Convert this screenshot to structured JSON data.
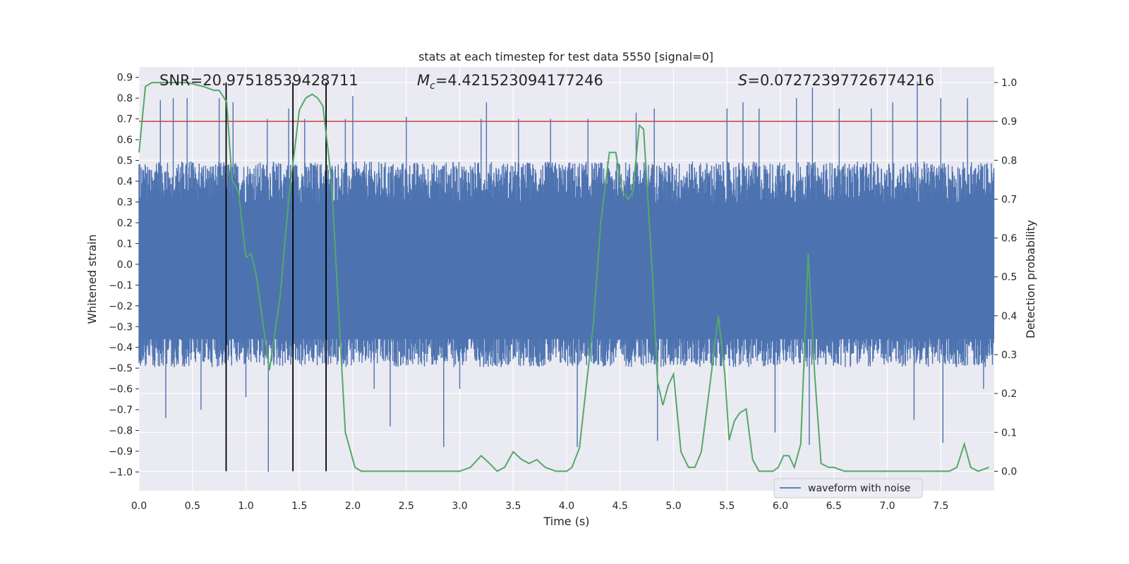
{
  "chart_data": {
    "type": "line",
    "title": "stats at each timestep for test data 5550 [signal=0]",
    "xlabel": "Time (s)",
    "ylabel_left": "Whitened strain",
    "ylabel_right": "Detection probability",
    "xlim": [
      0.0,
      8.0
    ],
    "ylim_left": [
      -1.09,
      0.95
    ],
    "ylim_right": [
      -0.05,
      1.04
    ],
    "x_ticks": [
      0.0,
      0.5,
      1.0,
      1.5,
      2.0,
      2.5,
      3.0,
      3.5,
      4.0,
      4.5,
      5.0,
      5.5,
      6.0,
      6.5,
      7.0,
      7.5
    ],
    "x_tick_labels": [
      "0.0",
      "0.5",
      "1.0",
      "1.5",
      "2.0",
      "2.5",
      "3.0",
      "3.5",
      "4.0",
      "4.5",
      "5.0",
      "5.5",
      "6.0",
      "6.5",
      "7.0",
      "7.5"
    ],
    "y_left_ticks": [
      0.9,
      0.8,
      0.7,
      0.6,
      0.5,
      0.4,
      0.3,
      0.2,
      0.1,
      0.0,
      -0.1,
      -0.2,
      -0.3,
      -0.4,
      -0.5,
      -0.6,
      -0.7,
      -0.8,
      -0.9,
      -1.0
    ],
    "y_left_tick_labels": [
      "0.9",
      "0.8",
      "0.7",
      "0.6",
      "0.5",
      "0.4",
      "0.3",
      "0.2",
      "0.1",
      "0.0",
      "−0.1",
      "−0.2",
      "−0.3",
      "−0.4",
      "−0.5",
      "−0.6",
      "−0.7",
      "−0.8",
      "−0.9",
      "−1.0"
    ],
    "y_right_ticks": [
      1.0,
      0.9,
      0.8,
      0.7,
      0.6,
      0.5,
      0.4,
      0.3,
      0.2,
      0.1,
      0.0
    ],
    "y_right_tick_labels": [
      "1.0",
      "0.9",
      "0.8",
      "0.7",
      "0.6",
      "0.5",
      "0.4",
      "0.3",
      "0.2",
      "0.1",
      "0.0"
    ],
    "grid": true,
    "legend": {
      "entries": [
        "waveform with noise"
      ],
      "placement": "lower-right"
    },
    "annotations": {
      "snr": "SNR=20.97518539428711",
      "mc_symbol": "M",
      "mc_subscript": "c",
      "mc_value": "=4.421523094177246",
      "s_symbol": "S",
      "s_value": "=0.07272397726774216"
    },
    "waveform": {
      "name": "waveform with noise",
      "x_range": [
        0.0,
        8.0
      ],
      "envelope_typical": [
        -0.45,
        0.45
      ],
      "peaks": [
        [
          0.2,
          0.79
        ],
        [
          0.25,
          -0.74
        ],
        [
          0.32,
          0.8
        ],
        [
          0.45,
          0.8
        ],
        [
          0.58,
          -0.7
        ],
        [
          0.75,
          0.8
        ],
        [
          0.88,
          0.78
        ],
        [
          1.0,
          -0.64
        ],
        [
          1.2,
          0.7
        ],
        [
          1.21,
          -1.0
        ],
        [
          1.4,
          0.75
        ],
        [
          1.55,
          0.7
        ],
        [
          1.93,
          0.7
        ],
        [
          2.0,
          0.81
        ],
        [
          2.2,
          -0.6
        ],
        [
          2.35,
          -0.78
        ],
        [
          2.5,
          0.71
        ],
        [
          2.85,
          -0.88
        ],
        [
          3.0,
          -0.6
        ],
        [
          3.2,
          0.7
        ],
        [
          3.25,
          0.78
        ],
        [
          3.55,
          0.7
        ],
        [
          3.85,
          0.7
        ],
        [
          4.1,
          -0.88
        ],
        [
          4.2,
          0.7
        ],
        [
          4.65,
          0.73
        ],
        [
          4.82,
          0.75
        ],
        [
          4.85,
          -0.85
        ],
        [
          5.5,
          0.75
        ],
        [
          5.65,
          0.78
        ],
        [
          5.8,
          0.75
        ],
        [
          5.95,
          -0.81
        ],
        [
          6.15,
          0.8
        ],
        [
          6.3,
          0.85
        ],
        [
          6.27,
          -0.87
        ],
        [
          6.55,
          0.75
        ],
        [
          6.85,
          0.75
        ],
        [
          7.05,
          0.78
        ],
        [
          7.25,
          -0.75
        ],
        [
          7.28,
          0.88
        ],
        [
          7.5,
          0.8
        ],
        [
          7.52,
          -0.86
        ],
        [
          7.75,
          0.8
        ],
        [
          7.9,
          -0.6
        ]
      ]
    },
    "detection_probability": {
      "color": "#55a868",
      "x": [
        0.0,
        0.06,
        0.12,
        0.2,
        0.3,
        0.45,
        0.6,
        0.7,
        0.75,
        0.82,
        0.87,
        0.93,
        1.0,
        1.05,
        1.1,
        1.15,
        1.22,
        1.32,
        1.4,
        1.5,
        1.56,
        1.62,
        1.67,
        1.72,
        1.8,
        1.86,
        1.93,
        1.97,
        2.02,
        2.08,
        2.15,
        2.3,
        2.5,
        2.6,
        2.8,
        3.0,
        3.1,
        3.2,
        3.28,
        3.35,
        3.42,
        3.5,
        3.58,
        3.65,
        3.72,
        3.8,
        3.9,
        4.0,
        4.05,
        4.12,
        4.18,
        4.25,
        4.32,
        4.4,
        4.46,
        4.52,
        4.58,
        4.62,
        4.68,
        4.72,
        4.8,
        4.85,
        4.9,
        4.95,
        5.0,
        5.07,
        5.14,
        5.2,
        5.26,
        5.33,
        5.38,
        5.42,
        5.48,
        5.52,
        5.57,
        5.62,
        5.68,
        5.74,
        5.8,
        5.93,
        5.98,
        6.03,
        6.08,
        6.13,
        6.19,
        6.26,
        6.32,
        6.38,
        6.45,
        6.5,
        6.6,
        7.0,
        7.5,
        7.58,
        7.65,
        7.72,
        7.78,
        7.85,
        7.95
      ],
      "y": [
        0.82,
        0.99,
        1.0,
        1.0,
        1.0,
        1.0,
        0.99,
        0.98,
        0.98,
        0.95,
        0.75,
        0.72,
        0.55,
        0.56,
        0.5,
        0.4,
        0.26,
        0.45,
        0.7,
        0.93,
        0.96,
        0.97,
        0.96,
        0.94,
        0.75,
        0.45,
        0.1,
        0.06,
        0.01,
        0.0,
        0.0,
        0.0,
        0.0,
        0.0,
        0.0,
        0.0,
        0.01,
        0.04,
        0.02,
        0.0,
        0.01,
        0.05,
        0.03,
        0.02,
        0.03,
        0.01,
        0.0,
        0.0,
        0.01,
        0.06,
        0.21,
        0.38,
        0.64,
        0.82,
        0.82,
        0.72,
        0.7,
        0.72,
        0.89,
        0.88,
        0.52,
        0.23,
        0.17,
        0.22,
        0.25,
        0.05,
        0.01,
        0.01,
        0.05,
        0.2,
        0.31,
        0.4,
        0.25,
        0.08,
        0.13,
        0.15,
        0.16,
        0.03,
        0.0,
        0.0,
        0.01,
        0.04,
        0.04,
        0.01,
        0.07,
        0.56,
        0.25,
        0.02,
        0.01,
        0.01,
        0.0,
        0.0,
        0.0,
        0.0,
        0.01,
        0.07,
        0.01,
        0.0,
        0.01
      ]
    },
    "threshold": {
      "value": 0.9,
      "axis": "right",
      "color": "#c44e52"
    },
    "vertical_lines": {
      "x": [
        0.815,
        1.44,
        1.75
      ],
      "color": "#000000"
    }
  }
}
